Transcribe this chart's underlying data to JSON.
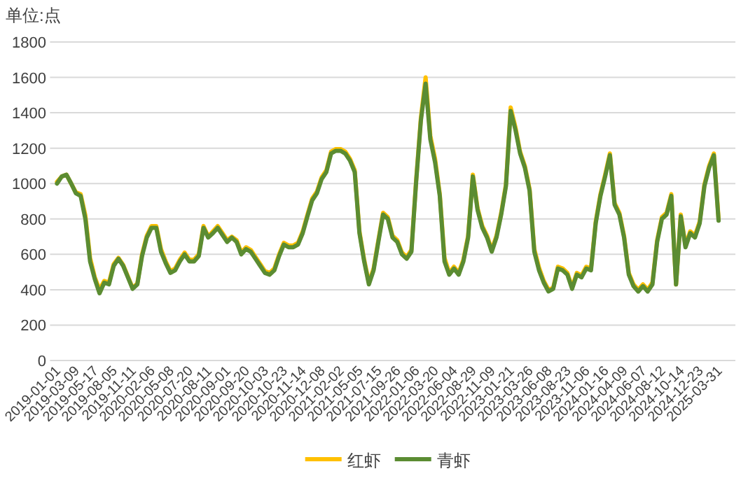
{
  "chart_data": {
    "type": "line",
    "ylabel": "单位:点",
    "categories": [
      "2019-01-01",
      null,
      null,
      null,
      "2019-03-09",
      null,
      null,
      null,
      "2019-05-17",
      null,
      null,
      null,
      "2019-08-05",
      null,
      null,
      null,
      "2019-11-11",
      null,
      null,
      null,
      "2020-02-06",
      null,
      null,
      null,
      "2020-05-08",
      null,
      null,
      null,
      "2020-07-20",
      null,
      null,
      null,
      "2020-08-11",
      null,
      null,
      null,
      "2020-09-01",
      null,
      null,
      null,
      "2020-09-20",
      null,
      null,
      null,
      "2020-10-03",
      null,
      null,
      null,
      "2020-10-23",
      null,
      null,
      null,
      "2020-11-14",
      null,
      null,
      null,
      "2020-12-08",
      null,
      null,
      null,
      "2021-02-02",
      null,
      null,
      null,
      "2021-05-05",
      null,
      null,
      null,
      "2021-07-15",
      null,
      null,
      null,
      "2021-09-26",
      null,
      null,
      null,
      "2022-01-06",
      null,
      null,
      null,
      "2022-03-20",
      null,
      null,
      null,
      "2022-06-04",
      null,
      null,
      null,
      "2022-08-29",
      null,
      null,
      null,
      "2022-11-09",
      null,
      null,
      null,
      "2023-01-21",
      null,
      null,
      null,
      "2023-03-26",
      null,
      null,
      null,
      "2023-06-08",
      null,
      null,
      null,
      "2023-08-23",
      null,
      null,
      null,
      "2023-11-06",
      null,
      null,
      null,
      "2024-01-16",
      null,
      null,
      null,
      "2024-04-09",
      null,
      null,
      null,
      "2024-06-07",
      null,
      null,
      null,
      "2024-08-12",
      null,
      null,
      null,
      "2024-10-14",
      null,
      null,
      null,
      "2024-12-23",
      null,
      null,
      null,
      "2025-03-31"
    ],
    "series": [
      {
        "name": "红虾",
        "color": "#ffc000",
        "values": [
          1010,
          1040,
          1050,
          1000,
          950,
          940,
          820,
          580,
          470,
          400,
          450,
          440,
          545,
          580,
          540,
          475,
          410,
          435,
          600,
          705,
          760,
          760,
          630,
          560,
          505,
          520,
          570,
          610,
          570,
          570,
          600,
          760,
          700,
          730,
          760,
          720,
          680,
          700,
          680,
          610,
          640,
          625,
          585,
          545,
          505,
          495,
          520,
          600,
          665,
          650,
          650,
          665,
          730,
          825,
          915,
          955,
          1035,
          1075,
          1180,
          1195,
          1195,
          1180,
          1140,
          1075,
          730,
          570,
          440,
          520,
          680,
          835,
          810,
          705,
          680,
          610,
          585,
          625,
          1020,
          1370,
          1600,
          1270,
          1140,
          940,
          580,
          495,
          530,
          495,
          570,
          705,
          1050,
          860,
          760,
          705,
          625,
          705,
          835,
          995,
          1430,
          1320,
          1180,
          1100,
          970,
          630,
          525,
          450,
          400,
          410,
          530,
          520,
          495,
          415,
          495,
          480,
          530,
          520,
          785,
          940,
          1050,
          1170,
          890,
          835,
          705,
          495,
          430,
          400,
          430,
          400,
          440,
          680,
          810,
          835,
          940,
          430,
          825,
          650,
          730,
          705,
          785,
          995,
          1100,
          1170,
          800
        ]
      },
      {
        "name": "青虾",
        "color": "#5b8c32",
        "values": [
          1000,
          1040,
          1050,
          1000,
          945,
          930,
          800,
          560,
          460,
          380,
          440,
          430,
          535,
          575,
          535,
          470,
          405,
          430,
          590,
          695,
          750,
          750,
          615,
          550,
          495,
          510,
          560,
          600,
          560,
          560,
          590,
          750,
          695,
          720,
          750,
          710,
          670,
          695,
          670,
          600,
          630,
          615,
          575,
          535,
          495,
          485,
          510,
          590,
          655,
          640,
          640,
          655,
          720,
          815,
          905,
          945,
          1025,
          1065,
          1170,
          1185,
          1185,
          1170,
          1130,
          1065,
          720,
          560,
          430,
          510,
          670,
          825,
          800,
          695,
          670,
          600,
          575,
          615,
          1010,
          1355,
          1565,
          1250,
          1120,
          930,
          560,
          485,
          520,
          485,
          560,
          695,
          1040,
          850,
          750,
          695,
          615,
          695,
          825,
          985,
          1410,
          1305,
          1170,
          1090,
          960,
          615,
          510,
          440,
          390,
          405,
          520,
          510,
          485,
          405,
          485,
          470,
          520,
          510,
          775,
          930,
          1040,
          1160,
          880,
          825,
          695,
          485,
          420,
          390,
          420,
          390,
          430,
          670,
          800,
          825,
          930,
          430,
          815,
          640,
          720,
          695,
          775,
          985,
          1090,
          1160,
          790
        ]
      }
    ],
    "ylim": [
      0,
      1800
    ],
    "yticks": [
      0,
      200,
      400,
      600,
      800,
      1000,
      1200,
      1400,
      1600,
      1800
    ],
    "grid": "y",
    "legend": "bottom",
    "line_style": "solid",
    "marker": "none"
  }
}
